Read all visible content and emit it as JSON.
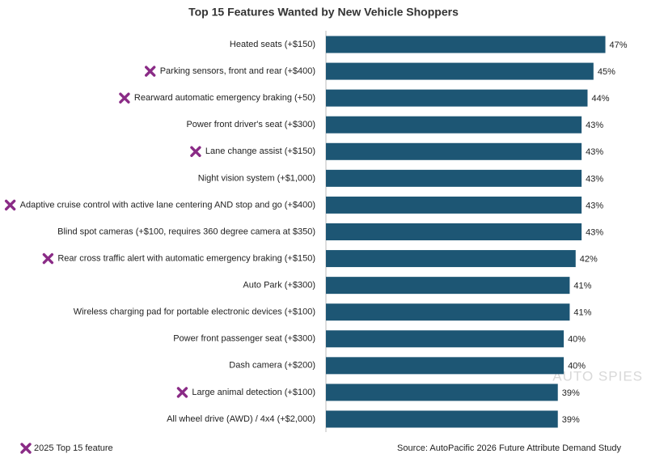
{
  "chart_data": {
    "type": "hbar",
    "title": "Top 15 Features Wanted by New Vehicle Shoppers",
    "categories": [
      "Heated seats (+$150)",
      "Parking sensors, front and rear (+$400)",
      "Rearward automatic emergency braking (+50)",
      "Power front driver's seat (+$300)",
      "Lane change assist (+$150)",
      "Night vision system (+$1,000)",
      "Adaptive cruise control with active lane centering AND stop and go (+$400)",
      "Blind spot cameras (+$100, requires 360 degree camera at $350)",
      "Rear cross traffic alert with automatic emergency braking (+$150)",
      "Auto Park (+$300)",
      "Wireless charging pad for portable electronic devices (+$100)",
      "Power front passenger seat (+$300)",
      "Dash camera (+$200)",
      "Large animal detection (+$100)",
      "All wheel drive (AWD) / 4x4 (+$2,000)"
    ],
    "values": [
      47,
      45,
      44,
      43,
      43,
      43,
      43,
      43,
      42,
      41,
      41,
      40,
      40,
      39,
      39
    ],
    "value_labels": [
      "47%",
      "45%",
      "44%",
      "43%",
      "43%",
      "43%",
      "43%",
      "43%",
      "42%",
      "41%",
      "41%",
      "40%",
      "40%",
      "39%",
      "39%"
    ],
    "color": "#1d5674",
    "xlim": [
      0,
      54
    ],
    "flagged": [
      false,
      true,
      true,
      false,
      true,
      false,
      true,
      false,
      true,
      false,
      false,
      false,
      false,
      true,
      false
    ],
    "marker": {
      "label": "2025 Top 15 feature",
      "color": "#8a2b86"
    },
    "source": "Source: AutoPacific 2026 Future Attribute Demand Study",
    "watermark": "AUTO SPIES"
  }
}
